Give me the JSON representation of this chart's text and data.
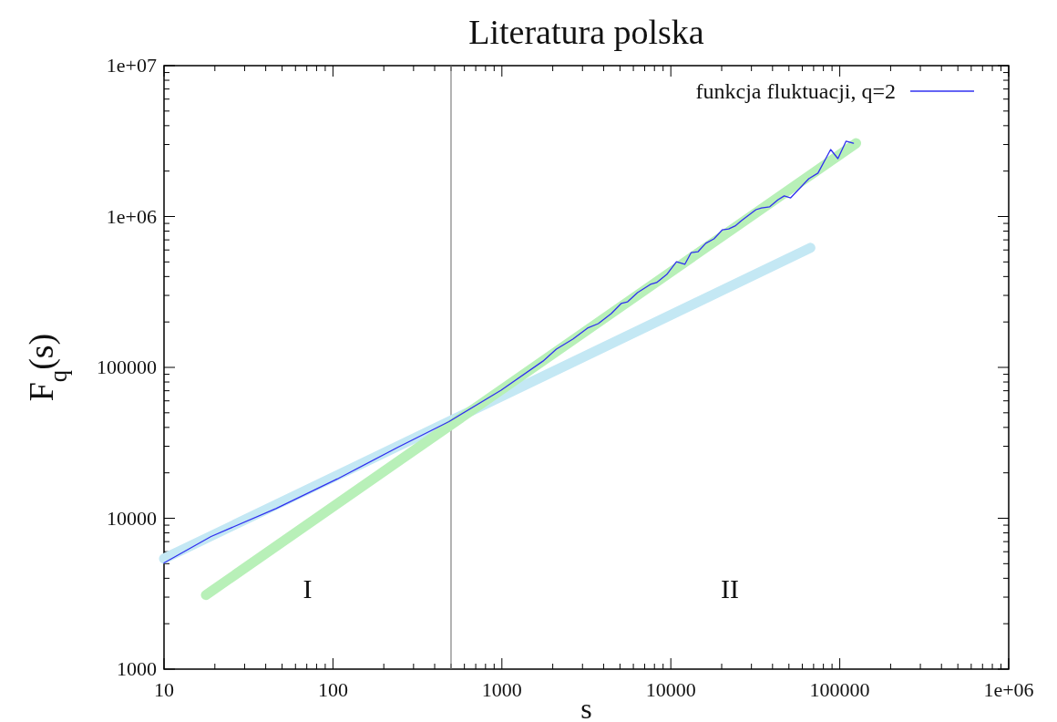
{
  "chart_data": {
    "type": "line",
    "title": "Literatura polska",
    "xlabel": "s",
    "ylabel": "F$_{q}$(s)",
    "log": "xy",
    "grid": false,
    "legend": "top right",
    "line_style": "solid",
    "marker": "none",
    "xlim": [
      10,
      1000000
    ],
    "ylim": [
      1000,
      10000000
    ],
    "xticks": [
      10,
      100,
      1000,
      10000,
      100000,
      {
        "value": 1000000,
        "label": "1e+06"
      }
    ],
    "yticks": [
      1000,
      10000,
      100000,
      {
        "value": 1000000,
        "label": "1e+06"
      },
      {
        "value": 10000000,
        "label": "1e+07"
      }
    ],
    "series": [
      {
        "color": "#c4e8f4",
        "x": [
          10,
          67000
        ],
        "values": [
          5400,
          620000
        ]
      },
      {
        "color": "#b8f0b8",
        "x": [
          17.7,
          125000
        ],
        "values": [
          3100,
          3060000
        ]
      },
      {
        "name": "funkcja fluktuacji, q=2",
        "color": "#3030f0",
        "x": [
          10,
          19,
          46,
          106,
          243,
          486,
          990,
          1750,
          2100,
          2630,
          3210,
          3720,
          4440,
          5080,
          5550,
          6350,
          7570,
          8240,
          9460,
          10800,
          12100,
          13200,
          14500,
          16100,
          18000,
          20200,
          22000,
          24000,
          26200,
          31900,
          34400,
          38500,
          43000,
          46900,
          51200,
          65600,
          74300,
          88300,
          97500,
          109000,
          120500
        ],
        "values": [
          5060,
          7570,
          11600,
          18200,
          29600,
          43700,
          70600,
          110000,
          132000,
          154000,
          182000,
          195000,
          227000,
          265000,
          272000,
          313000,
          355000,
          365000,
          413000,
          501000,
          482000,
          577000,
          585000,
          664000,
          711000,
          817000,
          828000,
          865000,
          940000,
          1110000,
          1140000,
          1160000,
          1290000,
          1370000,
          1330000,
          1780000,
          1940000,
          2780000,
          2420000,
          3160000,
          3060000
        ]
      }
    ],
    "ref_lines": [
      {
        "axis": "x",
        "value": 500,
        "color": "#808080"
      }
    ],
    "annotations": [
      "I",
      "II"
    ]
  }
}
